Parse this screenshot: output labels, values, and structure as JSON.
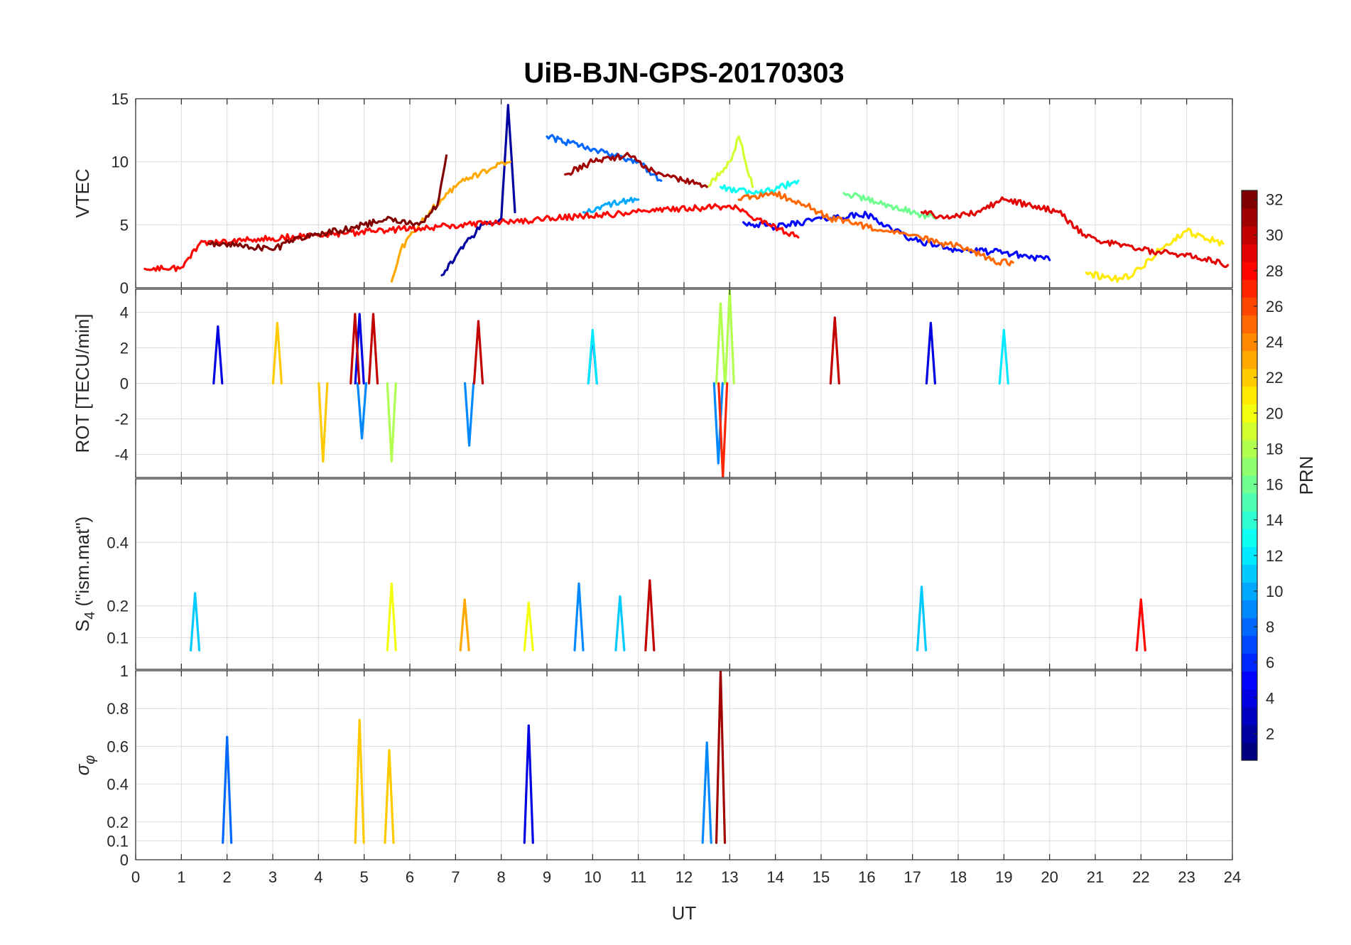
{
  "chart_data": {
    "type": "line",
    "title": "UiB-BJN-GPS-20170303",
    "xlabel": "UT",
    "xlim": [
      0,
      24
    ],
    "xticks": [
      "0",
      "1",
      "2",
      "3",
      "4",
      "5",
      "6",
      "7",
      "8",
      "9",
      "10",
      "11",
      "12",
      "13",
      "14",
      "15",
      "16",
      "17",
      "18",
      "19",
      "20",
      "21",
      "22",
      "23",
      "24"
    ],
    "colorbar": {
      "label": "PRN",
      "range": [
        1,
        32
      ],
      "ticks": [
        "2",
        "4",
        "6",
        "8",
        "10",
        "12",
        "14",
        "16",
        "18",
        "20",
        "22",
        "24",
        "26",
        "28",
        "30",
        "32"
      ],
      "colormap": "jet"
    },
    "panels": [
      {
        "ylabel": "VTEC",
        "ylim": [
          0,
          15
        ],
        "yticks": [
          "0",
          "5",
          "10",
          "15"
        ],
        "series": [
          {
            "prn": 2,
            "x": [
              6.7,
              7.2,
              7.6,
              8.0,
              8.15,
              8.3
            ],
            "y": [
              1.0,
              3.5,
              5.0,
              5.5,
              14.5,
              6.0
            ]
          },
          {
            "prn": 5,
            "x": [
              13.3,
              14.0,
              15.0,
              16.0,
              17.0,
              18.0,
              19.0,
              20.0
            ],
            "y": [
              5.2,
              4.8,
              5.5,
              5.8,
              3.8,
              3.0,
              2.8,
              2.2
            ]
          },
          {
            "prn": 8,
            "x": [
              9.0,
              9.5,
              10.0,
              10.5,
              11.0,
              11.5
            ],
            "y": [
              12.0,
              11.5,
              11.0,
              10.5,
              10.0,
              8.5
            ]
          },
          {
            "prn": 10,
            "x": [
              9.8,
              10.2,
              10.6,
              11.0
            ],
            "y": [
              6.0,
              6.5,
              6.8,
              7.0
            ]
          },
          {
            "prn": 13,
            "x": [
              12.8,
              13.5,
              14.0,
              14.5
            ],
            "y": [
              8.0,
              7.5,
              7.8,
              8.5
            ]
          },
          {
            "prn": 16,
            "x": [
              15.5,
              16.0,
              16.5,
              17.0,
              17.5
            ],
            "y": [
              7.5,
              7.0,
              6.5,
              6.0,
              5.5
            ]
          },
          {
            "prn": 19,
            "x": [
              12.5,
              13.0,
              13.2,
              13.5
            ],
            "y": [
              8.0,
              10.0,
              12.0,
              8.0
            ]
          },
          {
            "prn": 21,
            "x": [
              20.8,
              21.2,
              21.6,
              22.0,
              22.4,
              23.0,
              23.8
            ],
            "y": [
              1.2,
              0.8,
              0.7,
              1.5,
              3.0,
              4.5,
              3.5
            ]
          },
          {
            "prn": 23,
            "x": [
              5.6,
              5.8,
              6.2,
              6.8,
              7.2,
              7.8,
              8.2
            ],
            "y": [
              0.5,
              3.0,
              5.0,
              7.5,
              8.5,
              9.5,
              10.0
            ]
          },
          {
            "prn": 25,
            "x": [
              13.2,
              14.0,
              14.7,
              15.2,
              15.8,
              16.4,
              17.0,
              17.6,
              18.2,
              18.8,
              19.2
            ],
            "y": [
              7.0,
              7.5,
              6.5,
              5.5,
              5.0,
              4.5,
              4.2,
              3.5,
              3.2,
              2.0,
              2.0
            ]
          },
          {
            "prn": 28,
            "x": [
              0.2,
              0.6,
              1.0,
              1.4,
              13.0,
              13.6,
              14.5
            ],
            "y": [
              1.5,
              1.5,
              1.6,
              3.5,
              6.5,
              5.5,
              4.0
            ]
          },
          {
            "prn": 29,
            "x": [
              17.2,
              17.8,
              18.4,
              19.0,
              19.6,
              20.2,
              20.8,
              21.4,
              22.0,
              22.6,
              23.4,
              23.9
            ],
            "y": [
              6.0,
              5.5,
              6.0,
              7.0,
              6.5,
              6.0,
              4.0,
              3.5,
              3.0,
              2.8,
              2.3,
              1.8
            ]
          },
          {
            "prn": 31,
            "x": [
              9.4,
              10.0,
              10.8,
              11.4,
              12.0,
              12.5
            ],
            "y": [
              9.0,
              10.0,
              10.5,
              9.0,
              8.5,
              8.0
            ]
          },
          {
            "prn": 32,
            "x": [
              1.6,
              2.2,
              3.0,
              3.6,
              4.4,
              5.0,
              5.6,
              6.2,
              6.6,
              6.8
            ],
            "y": [
              3.5,
              3.5,
              3.0,
              4.0,
              4.5,
              5.0,
              5.5,
              5.0,
              6.5,
              10.5
            ]
          }
        ]
      },
      {
        "ylabel": "ROT [TECU/min]",
        "ylim": [
          -5.3,
          5.3
        ],
        "yticks": [
          "-4",
          "-2",
          "0",
          "2",
          "4"
        ],
        "series": [
          {
            "prn": 4,
            "x": [
              1.8,
              4.9,
              10.0,
              17.4
            ],
            "y": [
              3.2,
              3.9,
              2.8,
              3.4
            ]
          },
          {
            "prn": 9,
            "x": [
              4.95,
              7.3,
              12.75
            ],
            "y": [
              -3.1,
              -3.5,
              -4.5
            ]
          },
          {
            "prn": 12,
            "x": [
              10.0,
              19.0
            ],
            "y": [
              3.0,
              3.0
            ]
          },
          {
            "prn": 18,
            "x": [
              12.8,
              13.0,
              5.6
            ],
            "y": [
              4.5,
              5.3,
              -4.4
            ]
          },
          {
            "prn": 22,
            "x": [
              4.1,
              3.1
            ],
            "y": [
              -4.4,
              3.4
            ]
          },
          {
            "prn": 27,
            "x": [
              12.85
            ],
            "y": [
              -5.3
            ]
          },
          {
            "prn": 30,
            "x": [
              4.8,
              5.2,
              7.5,
              15.3
            ],
            "y": [
              3.9,
              3.9,
              3.5,
              3.7
            ]
          }
        ]
      },
      {
        "ylabel": "S4 (\"ism.mat\")",
        "ylim": [
          0,
          0.6
        ],
        "yticks": [
          "0.1",
          "0.2",
          "0.4"
        ],
        "series": [
          {
            "prn": 11,
            "x": [
              1.3,
              10.6,
              17.2
            ],
            "y": [
              0.24,
              0.23,
              0.26
            ]
          },
          {
            "prn": 20,
            "x": [
              5.6,
              8.6
            ],
            "y": [
              0.27,
              0.21
            ]
          },
          {
            "prn": 23,
            "x": [
              7.2
            ],
            "y": [
              0.22
            ]
          },
          {
            "prn": 9,
            "x": [
              9.7
            ],
            "y": [
              0.27
            ]
          },
          {
            "prn": 30,
            "x": [
              11.25
            ],
            "y": [
              0.28
            ]
          },
          {
            "prn": 28,
            "x": [
              22.0
            ],
            "y": [
              0.22
            ]
          }
        ]
      },
      {
        "ylabel": "σφ",
        "ylim": [
          0,
          1
        ],
        "yticks": [
          "0",
          "0.1",
          "0.2",
          "0.4",
          "0.6",
          "0.8",
          "1"
        ],
        "series": [
          {
            "prn": 8,
            "x": [
              2.0
            ],
            "y": [
              0.65
            ]
          },
          {
            "prn": 22,
            "x": [
              4.9,
              5.55
            ],
            "y": [
              0.74,
              0.58
            ]
          },
          {
            "prn": 4,
            "x": [
              8.6
            ],
            "y": [
              0.71
            ]
          },
          {
            "prn": 9,
            "x": [
              12.5
            ],
            "y": [
              0.62
            ]
          },
          {
            "prn": 31,
            "x": [
              12.8
            ],
            "y": [
              1.0
            ]
          }
        ]
      }
    ]
  }
}
